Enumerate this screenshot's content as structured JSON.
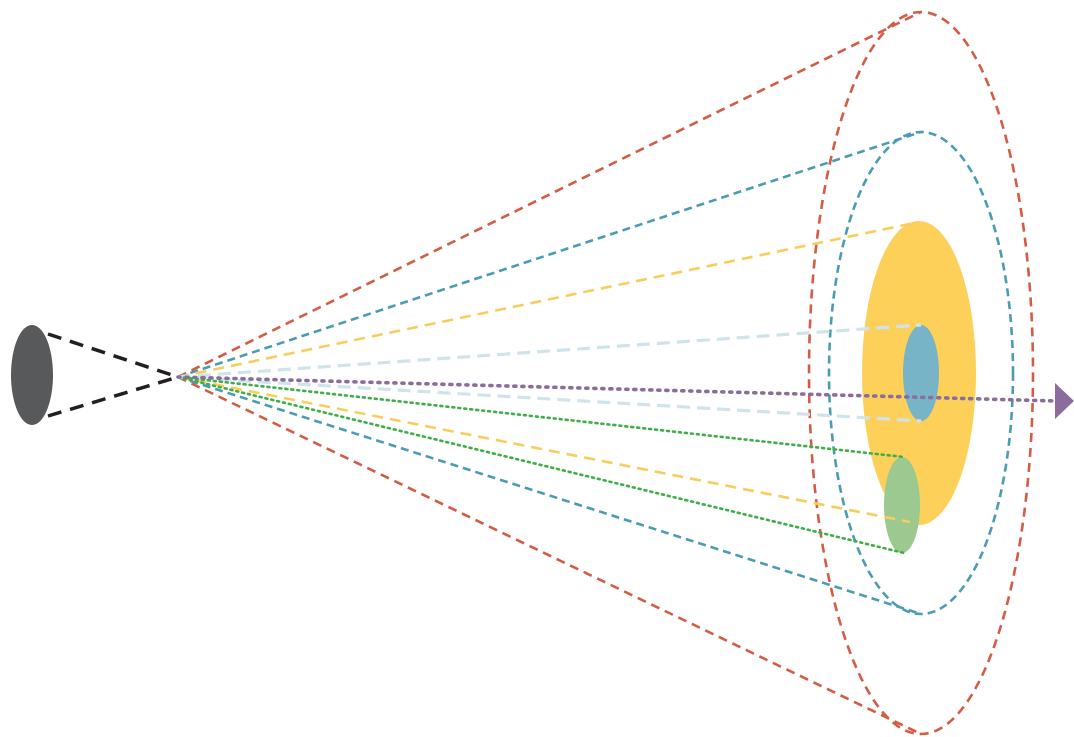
{
  "diagram": {
    "colors": {
      "background": "#ffffff",
      "source": "#58595b",
      "source_rays": "#231f20",
      "outer_cone": "#d35c45",
      "middle_cone": "#4b9cb1",
      "yellow_cone": "#f7ce5d",
      "yellow_fill": "#fdd05a",
      "light_blue_cone": "#cfe4ea",
      "blue_fill": "#78b4c7",
      "green_cone": "#3fae49",
      "green_fill": "#9cc98f",
      "axis_arrow": "#8a6d9c"
    }
  }
}
